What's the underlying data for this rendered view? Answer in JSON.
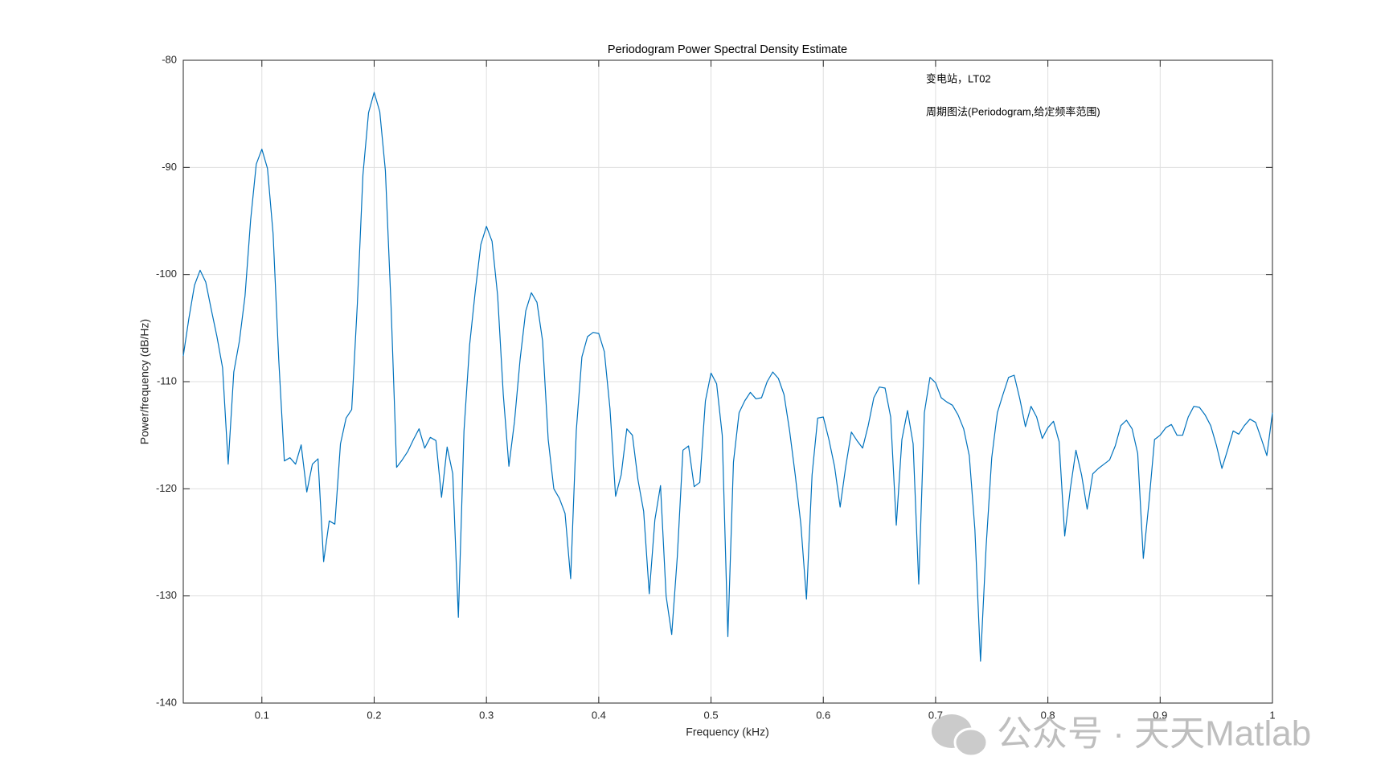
{
  "chart_data": {
    "type": "line",
    "title": "Periodogram Power Spectral Density Estimate",
    "xlabel": "Frequency (kHz)",
    "ylabel": "Power/frequency (dB/Hz)",
    "annotations": [
      "变电站，LT02",
      "周期图法(Periodogram,给定频率范围)"
    ],
    "watermark": "公众号 · 天天Matlab",
    "color": "#0072bd",
    "grid": true,
    "xlim": [
      0.03,
      1
    ],
    "ylim": [
      -140,
      -80
    ],
    "xticks": [
      0.1,
      0.2,
      0.3,
      0.4,
      0.5,
      0.6,
      0.7,
      0.8,
      0.9,
      1
    ],
    "yticks": [
      -140,
      -130,
      -120,
      -110,
      -100,
      -90,
      -80
    ],
    "x": [
      0.03,
      0.035,
      0.04,
      0.045,
      0.05,
      0.055,
      0.06,
      0.065,
      0.07,
      0.075,
      0.08,
      0.085,
      0.09,
      0.095,
      0.1,
      0.105,
      0.11,
      0.115,
      0.12,
      0.125,
      0.13,
      0.135,
      0.14,
      0.145,
      0.15,
      0.155,
      0.16,
      0.165,
      0.17,
      0.175,
      0.18,
      0.185,
      0.19,
      0.195,
      0.2,
      0.205,
      0.21,
      0.215,
      0.22,
      0.225,
      0.23,
      0.235,
      0.24,
      0.245,
      0.25,
      0.255,
      0.26,
      0.265,
      0.27,
      0.275,
      0.28,
      0.285,
      0.29,
      0.295,
      0.3,
      0.305,
      0.31,
      0.315,
      0.32,
      0.325,
      0.33,
      0.335,
      0.34,
      0.345,
      0.35,
      0.355,
      0.36,
      0.365,
      0.37,
      0.375,
      0.38,
      0.385,
      0.39,
      0.395,
      0.4,
      0.405,
      0.41,
      0.415,
      0.42,
      0.425,
      0.43,
      0.435,
      0.44,
      0.445,
      0.45,
      0.455,
      0.46,
      0.465,
      0.47,
      0.475,
      0.48,
      0.485,
      0.49,
      0.495,
      0.5,
      0.505,
      0.51,
      0.515,
      0.52,
      0.525,
      0.53,
      0.535,
      0.54,
      0.545,
      0.55,
      0.555,
      0.56,
      0.565,
      0.57,
      0.575,
      0.58,
      0.585,
      0.59,
      0.595,
      0.6,
      0.605,
      0.61,
      0.615,
      0.62,
      0.625,
      0.63,
      0.635,
      0.64,
      0.645,
      0.65,
      0.655,
      0.66,
      0.665,
      0.67,
      0.675,
      0.68,
      0.685,
      0.69,
      0.695,
      0.7,
      0.705,
      0.71,
      0.715,
      0.72,
      0.725,
      0.73,
      0.735,
      0.74,
      0.745,
      0.75,
      0.755,
      0.76,
      0.765,
      0.77,
      0.775,
      0.78,
      0.785,
      0.79,
      0.795,
      0.8,
      0.805,
      0.81,
      0.815,
      0.82,
      0.825,
      0.83,
      0.835,
      0.84,
      0.845,
      0.85,
      0.855,
      0.86,
      0.865,
      0.87,
      0.875,
      0.88,
      0.885,
      0.89,
      0.895,
      0.9,
      0.905,
      0.91,
      0.915,
      0.92,
      0.925,
      0.93,
      0.935,
      0.94,
      0.945,
      0.95,
      0.955,
      0.96,
      0.965,
      0.97,
      0.975,
      0.98,
      0.985,
      0.99,
      0.995,
      1.0
    ],
    "values": [
      -107.6,
      -104.1,
      -101.0,
      -99.6,
      -100.7,
      -103.3,
      -105.8,
      -108.7,
      -117.7,
      -109.1,
      -106.2,
      -102.0,
      -94.9,
      -89.7,
      -88.3,
      -90.1,
      -96.2,
      -107.9,
      -117.4,
      -117.1,
      -117.7,
      -115.9,
      -120.3,
      -117.7,
      -117.2,
      -126.8,
      -123.0,
      -123.3,
      -115.8,
      -113.4,
      -112.6,
      -102.8,
      -90.7,
      -84.9,
      -83.0,
      -84.8,
      -90.3,
      -102.8,
      -118.0,
      -117.3,
      -116.5,
      -115.4,
      -114.4,
      -116.2,
      -115.2,
      -115.5,
      -120.8,
      -116.1,
      -118.6,
      -132.0,
      -114.6,
      -106.6,
      -101.6,
      -97.2,
      -95.5,
      -96.9,
      -102.0,
      -111.2,
      -117.9,
      -113.7,
      -107.9,
      -103.4,
      -101.7,
      -102.6,
      -106.2,
      -115.4,
      -120.0,
      -120.9,
      -122.3,
      -128.4,
      -114.6,
      -107.7,
      -105.8,
      -105.4,
      -105.5,
      -107.2,
      -112.5,
      -120.7,
      -118.7,
      -114.4,
      -115.0,
      -119.2,
      -122.1,
      -129.8,
      -122.9,
      -119.7,
      -130.0,
      -133.6,
      -126.3,
      -116.4,
      -116.0,
      -119.8,
      -119.4,
      -111.8,
      -109.2,
      -110.2,
      -115.0,
      -133.8,
      -117.5,
      -112.9,
      -111.8,
      -111.0,
      -111.6,
      -111.5,
      -110.0,
      -109.1,
      -109.7,
      -111.2,
      -114.6,
      -118.7,
      -123.3,
      -130.3,
      -118.7,
      -113.4,
      -113.3,
      -115.4,
      -117.9,
      -121.7,
      -117.9,
      -114.7,
      -115.5,
      -116.2,
      -114.1,
      -111.5,
      -110.5,
      -110.6,
      -113.3,
      -123.4,
      -115.4,
      -112.7,
      -115.8,
      -128.9,
      -112.9,
      -109.6,
      -110.1,
      -111.5,
      -111.9,
      -112.2,
      -113.1,
      -114.4,
      -116.9,
      -123.8,
      -136.1,
      -125.4,
      -117.1,
      -112.9,
      -111.2,
      -109.6,
      -109.4,
      -111.6,
      -114.2,
      -112.3,
      -113.3,
      -115.3,
      -114.3,
      -113.7,
      -115.6,
      -124.4,
      -120.0,
      -116.4,
      -118.7,
      -121.9,
      -118.6,
      -118.1,
      -117.7,
      -117.3,
      -116.0,
      -114.1,
      -113.6,
      -114.4,
      -116.7,
      -126.5,
      -121.3,
      -115.4,
      -115.0,
      -114.3,
      -114.0,
      -115.0,
      -115.0,
      -113.3,
      -112.3,
      -112.4,
      -113.1,
      -114.1,
      -115.9,
      -118.1,
      -116.4,
      -114.6,
      -114.9,
      -114.1,
      -113.5,
      -113.8,
      -115.3,
      -116.9,
      -112.9
    ]
  }
}
